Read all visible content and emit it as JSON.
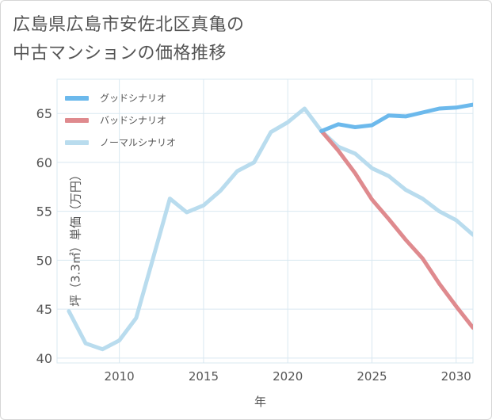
{
  "title": {
    "line1": "広島県広島市安佐北区真亀の",
    "line2": "中古マンションの価格推移"
  },
  "colors": {
    "good": "#6cb9ec",
    "bad": "#df8a8e",
    "normal": "#b9dcee",
    "grid": "#d9e8f1",
    "axis_text": "#555555"
  },
  "chart_data": {
    "type": "line",
    "xlabel": "年",
    "ylabel": "坪（3.3㎡）単価（万円）",
    "xlim": [
      2006.3,
      2031
    ],
    "ylim": [
      39.5,
      68.5
    ],
    "x_ticks": [
      2010,
      2015,
      2020,
      2025,
      2030
    ],
    "y_ticks": [
      40,
      45,
      50,
      55,
      60,
      65
    ],
    "grid": true,
    "legend_position": "top-left",
    "series": [
      {
        "name": "グッドシナリオ",
        "color": "#6cb9ec",
        "x": [
          2022,
          2023,
          2024,
          2025,
          2026,
          2027,
          2028,
          2029,
          2030,
          2031
        ],
        "y": [
          63.2,
          63.9,
          63.6,
          63.8,
          64.8,
          64.7,
          65.1,
          65.5,
          65.6,
          65.9
        ]
      },
      {
        "name": "バッドシナリオ",
        "color": "#df8a8e",
        "x": [
          2022,
          2023,
          2024,
          2025,
          2026,
          2027,
          2028,
          2029,
          2030,
          2031
        ],
        "y": [
          63.2,
          61.2,
          58.9,
          56.2,
          54.2,
          52.1,
          50.2,
          47.6,
          45.3,
          43.1
        ]
      },
      {
        "name": "ノーマルシナリオ",
        "color": "#b9dcee",
        "x": [
          2007,
          2008,
          2009,
          2010,
          2011,
          2012,
          2013,
          2014,
          2015,
          2016,
          2017,
          2018,
          2019,
          2020,
          2021,
          2022,
          2023,
          2024,
          2025,
          2026,
          2027,
          2028,
          2029,
          2030,
          2031
        ],
        "y": [
          44.8,
          41.5,
          40.9,
          41.8,
          44.1,
          50.2,
          56.3,
          54.9,
          55.6,
          57.1,
          59.1,
          60.0,
          63.1,
          64.1,
          65.5,
          63.2,
          61.6,
          60.9,
          59.4,
          58.6,
          57.2,
          56.3,
          55.0,
          54.1,
          52.6
        ]
      }
    ]
  }
}
